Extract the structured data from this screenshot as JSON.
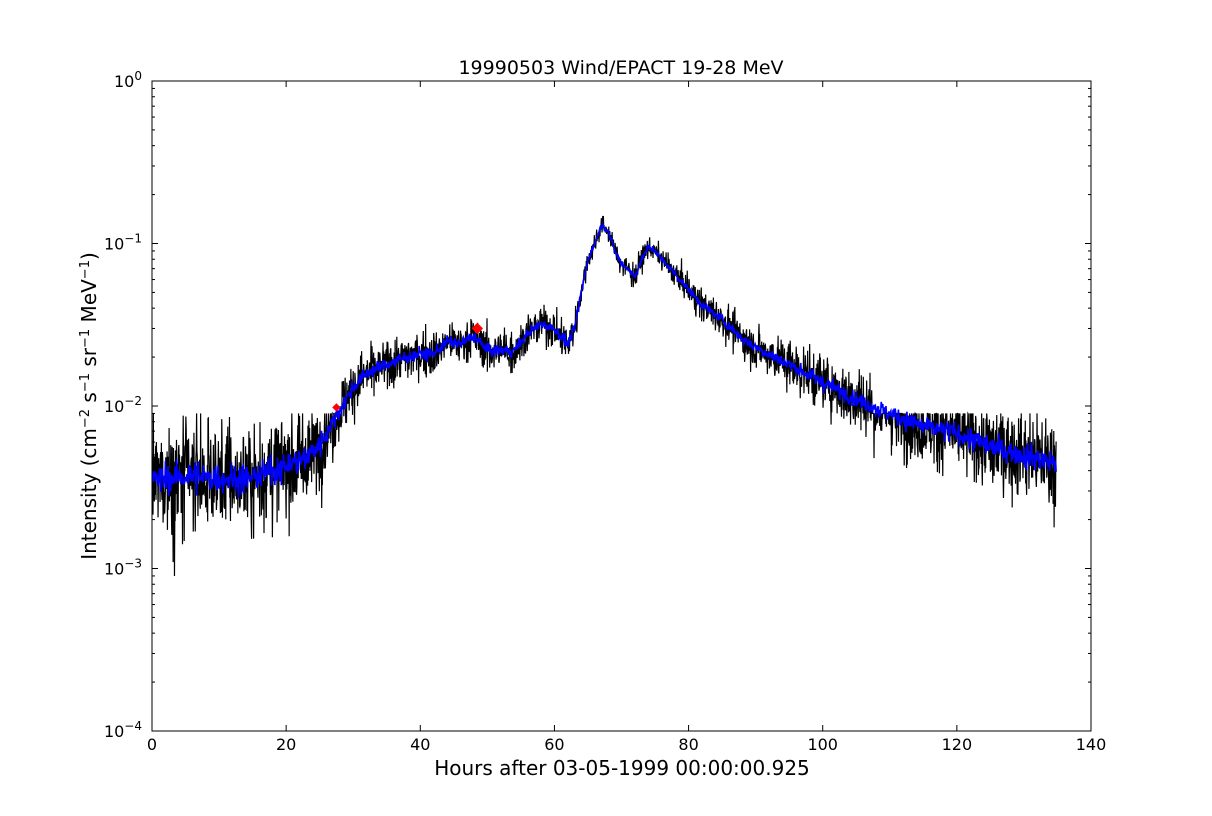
{
  "chart_data": {
    "type": "line",
    "title": "19990503 Wind/EPACT 19-28 MeV",
    "xlabel": "Hours after 03-05-1999 00:00:00.925",
    "ylabel": {
      "prefix": "Intensity (cm",
      "sup1": "−2",
      "mid1": " s",
      "sup2": "−1",
      "mid2": " sr",
      "sup3": "−1",
      "mid3": " MeV",
      "sup4": "−1",
      "suffix": ")"
    },
    "xlim": [
      0,
      140
    ],
    "ylim": [
      0.0001,
      1
    ],
    "yscale": "log",
    "grid": false,
    "x_ticks": [
      0,
      20,
      40,
      60,
      80,
      100,
      120,
      140
    ],
    "x_tick_labels": [
      "0",
      "20",
      "40",
      "60",
      "80",
      "100",
      "120",
      "140"
    ],
    "y_ticks": [
      0.0001,
      0.001,
      0.01,
      0.1,
      1
    ],
    "y_tick_labels": [
      {
        "base": "10",
        "exp": "−4"
      },
      {
        "base": "10",
        "exp": "−3"
      },
      {
        "base": "10",
        "exp": "−2"
      },
      {
        "base": "10",
        "exp": "−1"
      },
      {
        "base": "10",
        "exp": "0"
      }
    ],
    "series": [
      {
        "style": "raw intensity (noisy)",
        "color": "#000000",
        "x": [
          0,
          5,
          10,
          15,
          20,
          23,
          25,
          27,
          28,
          30,
          32,
          35,
          38,
          40,
          42,
          44,
          46,
          48,
          50,
          52,
          54,
          56,
          58,
          60,
          62,
          63,
          64,
          65,
          66,
          67,
          68,
          69,
          70,
          71,
          72,
          73,
          74,
          75,
          76,
          78,
          80,
          82,
          85,
          88,
          90,
          95,
          100,
          105,
          110,
          115,
          120,
          125,
          130,
          134.5
        ],
        "y": [
          0.0035,
          0.0037,
          0.0036,
          0.0036,
          0.0043,
          0.0048,
          0.0058,
          0.008,
          0.0095,
          0.013,
          0.016,
          0.018,
          0.02,
          0.021,
          0.021,
          0.025,
          0.024,
          0.027,
          0.022,
          0.022,
          0.022,
          0.028,
          0.032,
          0.03,
          0.024,
          0.03,
          0.05,
          0.08,
          0.1,
          0.13,
          0.12,
          0.09,
          0.075,
          0.07,
          0.062,
          0.08,
          0.095,
          0.09,
          0.08,
          0.065,
          0.052,
          0.042,
          0.034,
          0.026,
          0.023,
          0.018,
          0.014,
          0.011,
          0.009,
          0.0075,
          0.0068,
          0.0056,
          0.005,
          0.0045
        ]
      },
      {
        "style": "smoothed intensity",
        "color": "#0000ff",
        "x": [
          0,
          5,
          10,
          15,
          20,
          23,
          25,
          27,
          28,
          30,
          32,
          35,
          38,
          40,
          42,
          44,
          46,
          48,
          50,
          52,
          54,
          56,
          58,
          60,
          62,
          63,
          64,
          65,
          66,
          67,
          68,
          69,
          70,
          71,
          72,
          73,
          74,
          75,
          76,
          78,
          80,
          82,
          85,
          88,
          90,
          95,
          100,
          105,
          110,
          115,
          120,
          125,
          130,
          134.5
        ],
        "y": [
          0.0035,
          0.0037,
          0.0036,
          0.0036,
          0.0043,
          0.0048,
          0.0058,
          0.008,
          0.0095,
          0.013,
          0.016,
          0.018,
          0.02,
          0.021,
          0.021,
          0.025,
          0.024,
          0.027,
          0.022,
          0.022,
          0.022,
          0.028,
          0.032,
          0.03,
          0.024,
          0.03,
          0.05,
          0.08,
          0.1,
          0.13,
          0.12,
          0.09,
          0.075,
          0.07,
          0.062,
          0.08,
          0.095,
          0.09,
          0.08,
          0.065,
          0.052,
          0.042,
          0.034,
          0.026,
          0.023,
          0.018,
          0.014,
          0.011,
          0.009,
          0.0075,
          0.0068,
          0.0056,
          0.005,
          0.0045
        ]
      }
    ],
    "markers": [
      {
        "x": 27.5,
        "y": 0.0098,
        "color": "#ff0000",
        "size": "small"
      },
      {
        "x": 48.5,
        "y": 0.03,
        "color": "#ff0000",
        "size": "large"
      }
    ],
    "noise_floor": 0.0009,
    "noise_upper_cap": 0.009,
    "data_end_x": 134.8
  }
}
